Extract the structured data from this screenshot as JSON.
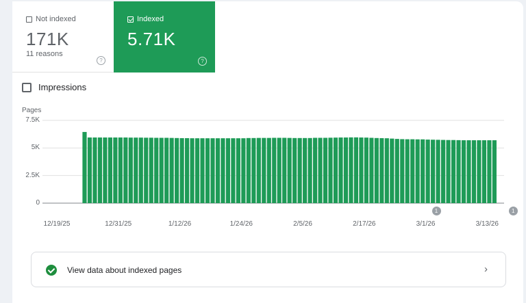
{
  "tiles": {
    "not_indexed": {
      "label": "Not indexed",
      "value": "171K",
      "subtext": "11 reasons",
      "help": "?"
    },
    "indexed": {
      "label": "Indexed",
      "value": "5.71K",
      "help": "?"
    }
  },
  "impressions_label": "Impressions",
  "chart_data": {
    "type": "bar",
    "ylabel": "Pages",
    "ylim": [
      0,
      7500
    ],
    "yticks": [
      "7.5K",
      "5K",
      "2.5K",
      "0"
    ],
    "xticks": [
      "12/19/25",
      "12/31/25",
      "1/12/26",
      "1/24/26",
      "2/5/26",
      "2/17/26",
      "3/1/26",
      "3/13/26"
    ],
    "start_date": "2025-12-24",
    "values": [
      6450,
      5950,
      5950,
      5950,
      5950,
      5950,
      5950,
      5950,
      5950,
      5940,
      5940,
      5940,
      5930,
      5930,
      5920,
      5920,
      5920,
      5910,
      5900,
      5890,
      5890,
      5880,
      5880,
      5880,
      5880,
      5880,
      5880,
      5880,
      5880,
      5880,
      5880,
      5880,
      5900,
      5900,
      5910,
      5910,
      5910,
      5920,
      5920,
      5920,
      5910,
      5900,
      5900,
      5900,
      5900,
      5920,
      5920,
      5920,
      5930,
      5940,
      5950,
      5950,
      5960,
      5960,
      5950,
      5940,
      5920,
      5900,
      5890,
      5880,
      5850,
      5820,
      5800,
      5790,
      5790,
      5780,
      5780,
      5760,
      5750,
      5740,
      5730,
      5720,
      5720,
      5710,
      5700,
      5700,
      5700,
      5700,
      5700,
      5700,
      5700
    ],
    "annotations": [
      {
        "label": "1",
        "date": "2026-03-03"
      },
      {
        "label": "1",
        "date": "2026-03-18"
      }
    ],
    "color": "#1e9b57"
  },
  "view_link": {
    "label": "View data about indexed pages",
    "chevron": "›"
  },
  "colors": {
    "accent": "#1e9b57",
    "check": "#1e8e3e"
  }
}
